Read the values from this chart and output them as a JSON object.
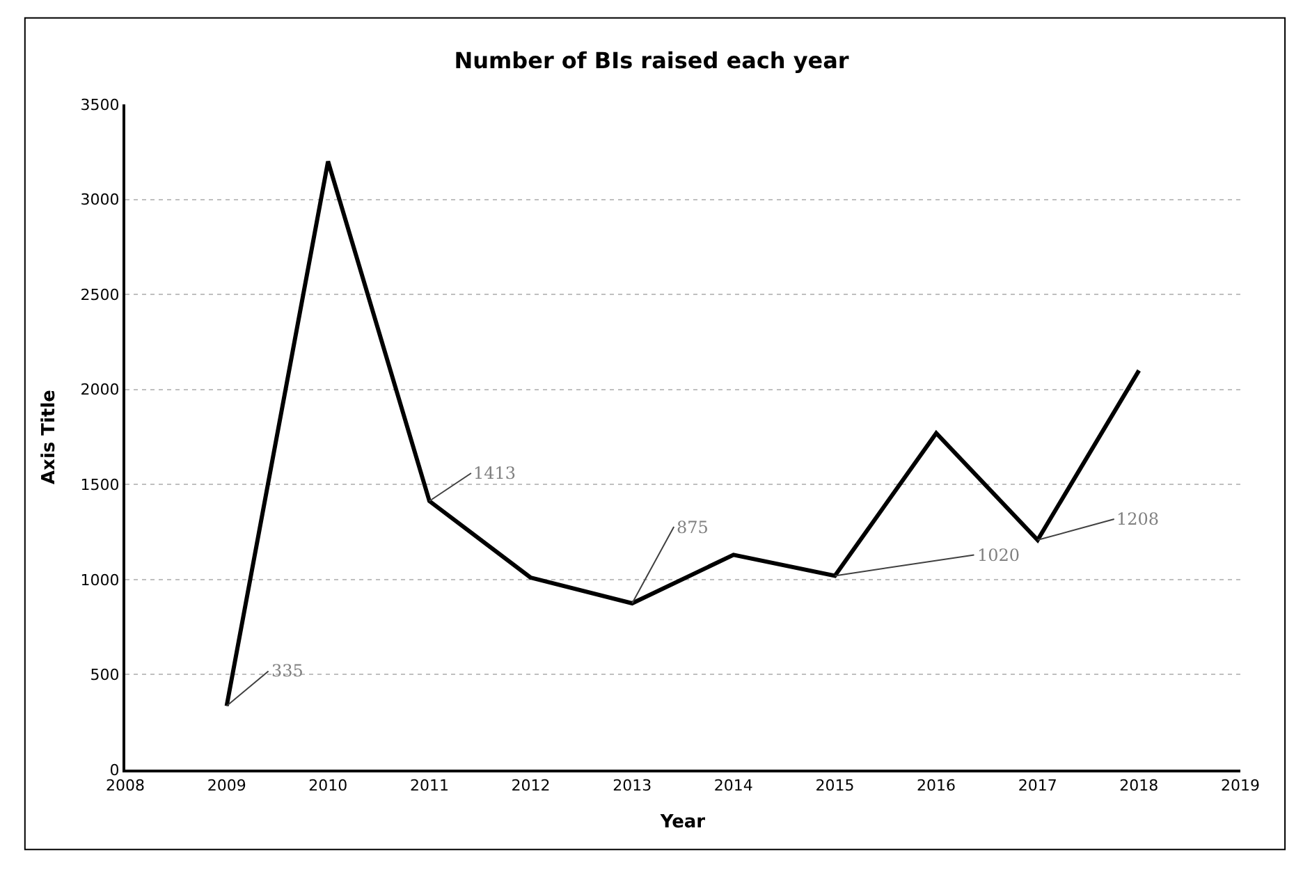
{
  "chart_data": {
    "type": "line",
    "title": "Number of BIs raised each year",
    "xlabel": "Year",
    "ylabel": "Axis Title",
    "x": [
      2009,
      2010,
      2011,
      2012,
      2013,
      2014,
      2015,
      2016,
      2017,
      2018
    ],
    "series": [
      {
        "color": "#000000",
        "values": [
          335,
          3200,
          1413,
          1010,
          875,
          1130,
          1020,
          1770,
          1208,
          2100
        ]
      }
    ],
    "xlim": [
      2008,
      2019
    ],
    "xticks": [
      2008,
      2009,
      2010,
      2011,
      2012,
      2013,
      2014,
      2015,
      2016,
      2017,
      2018,
      2019
    ],
    "ylim": [
      0,
      3500
    ],
    "yticks": [
      0,
      500,
      1000,
      1500,
      2000,
      2500,
      3000,
      3500
    ],
    "grid": "y",
    "marker": "none",
    "line_style": "solid",
    "annotations": [
      {
        "text": "335",
        "x": 2009,
        "y": 335
      },
      {
        "text": "1413",
        "x": 2011,
        "y": 1413
      },
      {
        "text": "875",
        "x": 2013,
        "y": 875
      },
      {
        "text": "1020",
        "x": 2015,
        "y": 1020
      },
      {
        "text": "1208",
        "x": 2017,
        "y": 1208
      }
    ]
  }
}
